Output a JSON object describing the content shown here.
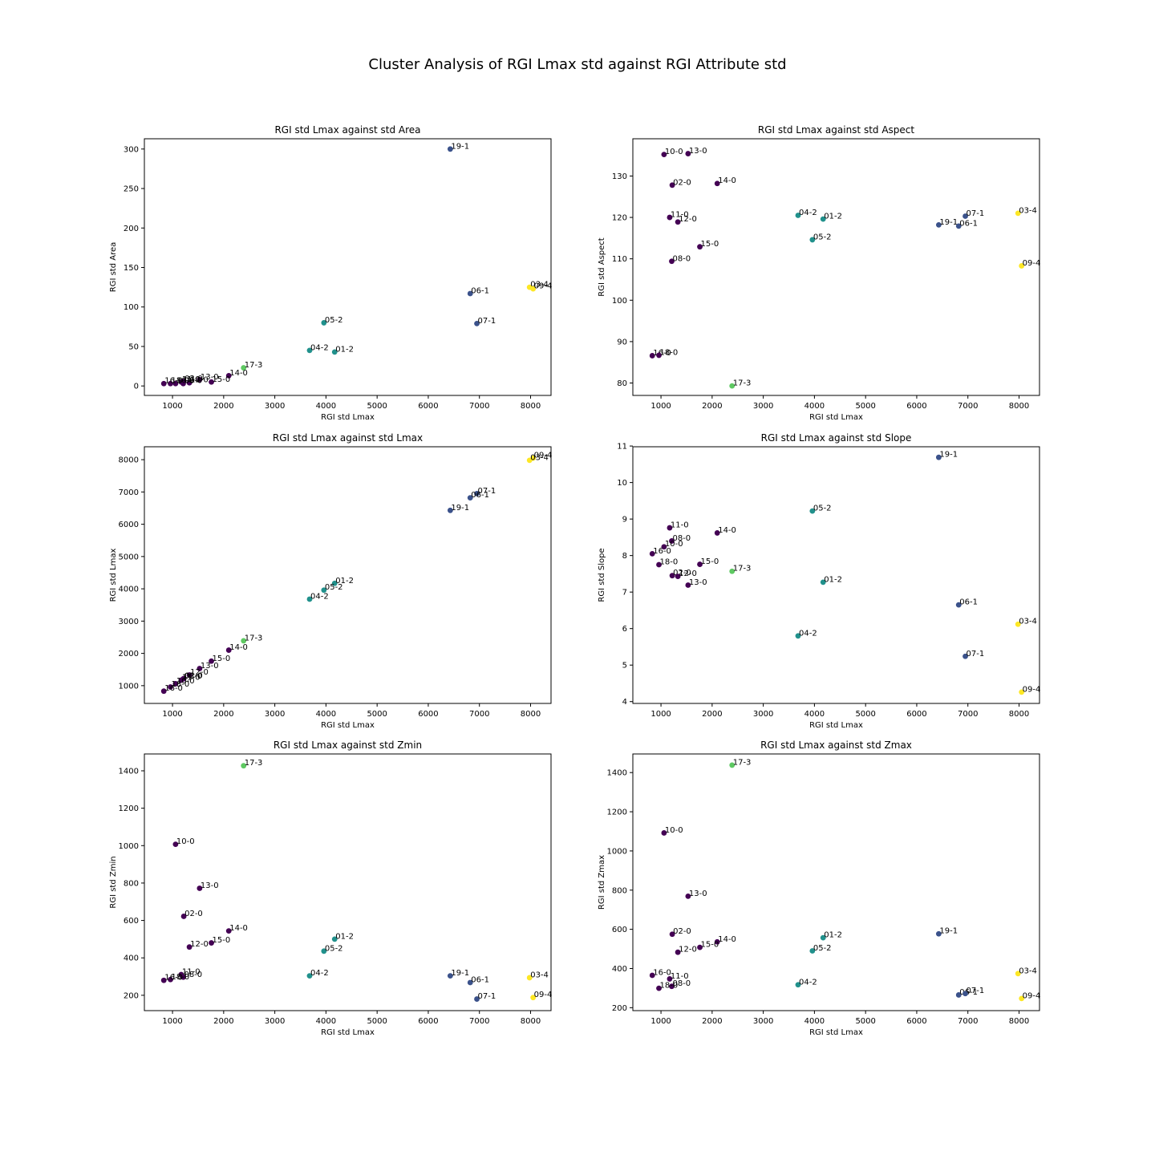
{
  "suptitle": "Cluster Analysis of RGI Lmax std against RGI Attribute std",
  "cluster_colors": {
    "0": "#440154",
    "1": "#3b528b",
    "2": "#21918c",
    "3": "#5ec962",
    "4": "#fde725"
  },
  "chart_data": [
    {
      "type": "scatter",
      "title": "RGI std Lmax against std Area",
      "xlabel": "RGI std Lmax",
      "ylabel": "RGI std Area",
      "xlim": [
        450,
        8400
      ],
      "ylim": [
        -12,
        313
      ],
      "xticks": [
        1000,
        2000,
        3000,
        4000,
        5000,
        6000,
        7000,
        8000
      ],
      "yticks": [
        0,
        50,
        100,
        150,
        200,
        250,
        300
      ],
      "points": [
        {
          "label": "19-1",
          "x": 6430,
          "y": 300,
          "cluster": 1
        },
        {
          "label": "06-1",
          "x": 6820,
          "y": 117,
          "cluster": 1
        },
        {
          "label": "07-1",
          "x": 6950,
          "y": 79,
          "cluster": 1
        },
        {
          "label": "03-4",
          "x": 7980,
          "y": 125,
          "cluster": 4
        },
        {
          "label": "09-4",
          "x": 8050,
          "y": 123,
          "cluster": 4
        },
        {
          "label": "05-2",
          "x": 3960,
          "y": 80,
          "cluster": 2
        },
        {
          "label": "04-2",
          "x": 3680,
          "y": 45,
          "cluster": 2
        },
        {
          "label": "01-2",
          "x": 4170,
          "y": 43,
          "cluster": 2
        },
        {
          "label": "17-3",
          "x": 2390,
          "y": 23,
          "cluster": 3
        },
        {
          "label": "14-0",
          "x": 2100,
          "y": 13,
          "cluster": 0
        },
        {
          "label": "15-0",
          "x": 1760,
          "y": 5,
          "cluster": 0
        },
        {
          "label": "13-0",
          "x": 1530,
          "y": 8,
          "cluster": 0
        },
        {
          "label": "12-0",
          "x": 1330,
          "y": 4,
          "cluster": 0
        },
        {
          "label": "02-0",
          "x": 1220,
          "y": 6,
          "cluster": 0
        },
        {
          "label": "11-0",
          "x": 1170,
          "y": 5,
          "cluster": 0
        },
        {
          "label": "08-0",
          "x": 1210,
          "y": 3,
          "cluster": 0
        },
        {
          "label": "10-0",
          "x": 1060,
          "y": 3,
          "cluster": 0
        },
        {
          "label": "18-0",
          "x": 960,
          "y": 3,
          "cluster": 0
        },
        {
          "label": "16-0",
          "x": 830,
          "y": 3,
          "cluster": 0
        }
      ]
    },
    {
      "type": "scatter",
      "title": "RGI std Lmax against std Aspect",
      "xlabel": "RGI std Lmax",
      "ylabel": "RGI std Aspect",
      "xlim": [
        450,
        8400
      ],
      "ylim": [
        77,
        139
      ],
      "xticks": [
        1000,
        2000,
        3000,
        4000,
        5000,
        6000,
        7000,
        8000
      ],
      "yticks": [
        80,
        90,
        100,
        110,
        120,
        130
      ],
      "points": [
        {
          "label": "10-0",
          "x": 1060,
          "y": 135.2,
          "cluster": 0
        },
        {
          "label": "13-0",
          "x": 1530,
          "y": 135.4,
          "cluster": 0
        },
        {
          "label": "02-0",
          "x": 1220,
          "y": 127.8,
          "cluster": 0
        },
        {
          "label": "14-0",
          "x": 2100,
          "y": 128.2,
          "cluster": 0
        },
        {
          "label": "11-0",
          "x": 1170,
          "y": 120.0,
          "cluster": 0
        },
        {
          "label": "12-0",
          "x": 1330,
          "y": 118.9,
          "cluster": 0
        },
        {
          "label": "15-0",
          "x": 1760,
          "y": 112.9,
          "cluster": 0
        },
        {
          "label": "08-0",
          "x": 1210,
          "y": 109.4,
          "cluster": 0
        },
        {
          "label": "16-0",
          "x": 830,
          "y": 86.6,
          "cluster": 0
        },
        {
          "label": "18-0",
          "x": 960,
          "y": 86.7,
          "cluster": 0
        },
        {
          "label": "17-3",
          "x": 2390,
          "y": 79.3,
          "cluster": 3
        },
        {
          "label": "04-2",
          "x": 3680,
          "y": 120.5,
          "cluster": 2
        },
        {
          "label": "01-2",
          "x": 4170,
          "y": 119.6,
          "cluster": 2
        },
        {
          "label": "05-2",
          "x": 3960,
          "y": 114.6,
          "cluster": 2
        },
        {
          "label": "19-1",
          "x": 6430,
          "y": 118.2,
          "cluster": 1
        },
        {
          "label": "06-1",
          "x": 6820,
          "y": 117.9,
          "cluster": 1
        },
        {
          "label": "07-1",
          "x": 6950,
          "y": 120.3,
          "cluster": 1
        },
        {
          "label": "03-4",
          "x": 7980,
          "y": 121.0,
          "cluster": 4
        },
        {
          "label": "09-4",
          "x": 8050,
          "y": 108.3,
          "cluster": 4
        }
      ]
    },
    {
      "type": "scatter",
      "title": "RGI std Lmax against std Lmax",
      "xlabel": "RGI std Lmax",
      "ylabel": "RGI std Lmax",
      "xlim": [
        450,
        8400
      ],
      "ylim": [
        450,
        8400
      ],
      "xticks": [
        1000,
        2000,
        3000,
        4000,
        5000,
        6000,
        7000,
        8000
      ],
      "yticks": [
        1000,
        2000,
        3000,
        4000,
        5000,
        6000,
        7000,
        8000
      ],
      "points": [
        {
          "label": "09-4",
          "x": 8050,
          "y": 8050,
          "cluster": 4
        },
        {
          "label": "03-4",
          "x": 7980,
          "y": 7980,
          "cluster": 4
        },
        {
          "label": "07-1",
          "x": 6950,
          "y": 6950,
          "cluster": 1
        },
        {
          "label": "06-1",
          "x": 6820,
          "y": 6820,
          "cluster": 1
        },
        {
          "label": "19-1",
          "x": 6430,
          "y": 6430,
          "cluster": 1
        },
        {
          "label": "01-2",
          "x": 4170,
          "y": 4170,
          "cluster": 2
        },
        {
          "label": "05-2",
          "x": 3960,
          "y": 3960,
          "cluster": 2
        },
        {
          "label": "04-2",
          "x": 3680,
          "y": 3680,
          "cluster": 2
        },
        {
          "label": "17-3",
          "x": 2390,
          "y": 2390,
          "cluster": 3
        },
        {
          "label": "14-0",
          "x": 2100,
          "y": 2100,
          "cluster": 0
        },
        {
          "label": "15-0",
          "x": 1760,
          "y": 1760,
          "cluster": 0
        },
        {
          "label": "13-0",
          "x": 1530,
          "y": 1530,
          "cluster": 0
        },
        {
          "label": "12-0",
          "x": 1330,
          "y": 1330,
          "cluster": 0
        },
        {
          "label": "02-0",
          "x": 1220,
          "y": 1220,
          "cluster": 0
        },
        {
          "label": "08-0",
          "x": 1210,
          "y": 1210,
          "cluster": 0
        },
        {
          "label": "11-0",
          "x": 1170,
          "y": 1170,
          "cluster": 0
        },
        {
          "label": "10-0",
          "x": 1060,
          "y": 1060,
          "cluster": 0
        },
        {
          "label": "18-0",
          "x": 960,
          "y": 960,
          "cluster": 0
        },
        {
          "label": "16-0",
          "x": 830,
          "y": 830,
          "cluster": 0
        }
      ]
    },
    {
      "type": "scatter",
      "title": "RGI std Lmax against std Slope",
      "xlabel": "RGI std Lmax",
      "ylabel": "RGI std Slope",
      "xlim": [
        450,
        8400
      ],
      "ylim": [
        3.95,
        10.98
      ],
      "xticks": [
        1000,
        2000,
        3000,
        4000,
        5000,
        6000,
        7000,
        8000
      ],
      "yticks": [
        4,
        5,
        6,
        7,
        8,
        9,
        10,
        11
      ],
      "points": [
        {
          "label": "19-1",
          "x": 6430,
          "y": 10.69,
          "cluster": 1
        },
        {
          "label": "05-2",
          "x": 3960,
          "y": 9.22,
          "cluster": 2
        },
        {
          "label": "11-0",
          "x": 1170,
          "y": 8.76,
          "cluster": 0
        },
        {
          "label": "14-0",
          "x": 2100,
          "y": 8.62,
          "cluster": 0
        },
        {
          "label": "08-0",
          "x": 1210,
          "y": 8.4,
          "cluster": 0
        },
        {
          "label": "10-0",
          "x": 1060,
          "y": 8.24,
          "cluster": 0
        },
        {
          "label": "16-0",
          "x": 830,
          "y": 8.05,
          "cluster": 0
        },
        {
          "label": "18-0",
          "x": 960,
          "y": 7.75,
          "cluster": 0
        },
        {
          "label": "15-0",
          "x": 1760,
          "y": 7.76,
          "cluster": 0
        },
        {
          "label": "17-3",
          "x": 2390,
          "y": 7.57,
          "cluster": 3
        },
        {
          "label": "02-0",
          "x": 1220,
          "y": 7.45,
          "cluster": 0
        },
        {
          "label": "12-0",
          "x": 1330,
          "y": 7.43,
          "cluster": 0
        },
        {
          "label": "13-0",
          "x": 1530,
          "y": 7.19,
          "cluster": 0
        },
        {
          "label": "01-2",
          "x": 4170,
          "y": 7.27,
          "cluster": 2
        },
        {
          "label": "06-1",
          "x": 6820,
          "y": 6.65,
          "cluster": 1
        },
        {
          "label": "03-4",
          "x": 7980,
          "y": 6.12,
          "cluster": 4
        },
        {
          "label": "04-2",
          "x": 3680,
          "y": 5.8,
          "cluster": 2
        },
        {
          "label": "07-1",
          "x": 6950,
          "y": 5.24,
          "cluster": 1
        },
        {
          "label": "09-4",
          "x": 8050,
          "y": 4.26,
          "cluster": 4
        }
      ]
    },
    {
      "type": "scatter",
      "title": "RGI std Lmax against std Zmin",
      "xlabel": "RGI std Lmax",
      "ylabel": "RGI std Zmin",
      "xlim": [
        450,
        8400
      ],
      "ylim": [
        118,
        1490
      ],
      "xticks": [
        1000,
        2000,
        3000,
        4000,
        5000,
        6000,
        7000,
        8000
      ],
      "yticks": [
        200,
        400,
        600,
        800,
        1000,
        1200,
        1400
      ],
      "points": [
        {
          "label": "17-3",
          "x": 2390,
          "y": 1427,
          "cluster": 3
        },
        {
          "label": "10-0",
          "x": 1060,
          "y": 1007,
          "cluster": 0
        },
        {
          "label": "13-0",
          "x": 1530,
          "y": 772,
          "cluster": 0
        },
        {
          "label": "02-0",
          "x": 1220,
          "y": 622,
          "cluster": 0
        },
        {
          "label": "14-0",
          "x": 2100,
          "y": 544,
          "cluster": 0
        },
        {
          "label": "15-0",
          "x": 1760,
          "y": 480,
          "cluster": 0
        },
        {
          "label": "12-0",
          "x": 1330,
          "y": 458,
          "cluster": 0
        },
        {
          "label": "01-2",
          "x": 4170,
          "y": 500,
          "cluster": 2
        },
        {
          "label": "05-2",
          "x": 3960,
          "y": 436,
          "cluster": 2
        },
        {
          "label": "11-0",
          "x": 1170,
          "y": 311,
          "cluster": 0
        },
        {
          "label": "08-0",
          "x": 1210,
          "y": 297,
          "cluster": 0
        },
        {
          "label": "18-0",
          "x": 960,
          "y": 284,
          "cluster": 0
        },
        {
          "label": "16-0",
          "x": 830,
          "y": 280,
          "cluster": 0
        },
        {
          "label": "04-2",
          "x": 3680,
          "y": 304,
          "cluster": 2
        },
        {
          "label": "19-1",
          "x": 6430,
          "y": 304,
          "cluster": 1
        },
        {
          "label": "06-1",
          "x": 6820,
          "y": 268,
          "cluster": 1
        },
        {
          "label": "07-1",
          "x": 6950,
          "y": 180,
          "cluster": 1
        },
        {
          "label": "03-4",
          "x": 7980,
          "y": 294,
          "cluster": 4
        },
        {
          "label": "09-4",
          "x": 8050,
          "y": 188,
          "cluster": 4
        }
      ]
    },
    {
      "type": "scatter",
      "title": "RGI std Lmax against std Zmax",
      "xlabel": "RGI std Lmax",
      "ylabel": "RGI std Zmax",
      "xlim": [
        450,
        8400
      ],
      "ylim": [
        185,
        1495
      ],
      "xticks": [
        1000,
        2000,
        3000,
        4000,
        5000,
        6000,
        7000,
        8000
      ],
      "yticks": [
        200,
        400,
        600,
        800,
        1000,
        1200,
        1400
      ],
      "points": [
        {
          "label": "17-3",
          "x": 2390,
          "y": 1438,
          "cluster": 3
        },
        {
          "label": "10-0",
          "x": 1060,
          "y": 1092,
          "cluster": 0
        },
        {
          "label": "13-0",
          "x": 1530,
          "y": 769,
          "cluster": 0
        },
        {
          "label": "02-0",
          "x": 1220,
          "y": 575,
          "cluster": 0
        },
        {
          "label": "14-0",
          "x": 2100,
          "y": 536,
          "cluster": 0
        },
        {
          "label": "15-0",
          "x": 1760,
          "y": 508,
          "cluster": 0
        },
        {
          "label": "12-0",
          "x": 1330,
          "y": 483,
          "cluster": 0
        },
        {
          "label": "01-2",
          "x": 4170,
          "y": 557,
          "cluster": 2
        },
        {
          "label": "05-2",
          "x": 3960,
          "y": 490,
          "cluster": 2
        },
        {
          "label": "19-1",
          "x": 6430,
          "y": 577,
          "cluster": 1
        },
        {
          "label": "16-0",
          "x": 830,
          "y": 365,
          "cluster": 0
        },
        {
          "label": "11-0",
          "x": 1170,
          "y": 347,
          "cluster": 0
        },
        {
          "label": "08-0",
          "x": 1210,
          "y": 309,
          "cluster": 0
        },
        {
          "label": "18-0",
          "x": 960,
          "y": 299,
          "cluster": 0
        },
        {
          "label": "04-2",
          "x": 3680,
          "y": 317,
          "cluster": 2
        },
        {
          "label": "06-1",
          "x": 6820,
          "y": 265,
          "cluster": 1
        },
        {
          "label": "07-1",
          "x": 6950,
          "y": 272,
          "cluster": 1
        },
        {
          "label": "03-4",
          "x": 7980,
          "y": 374,
          "cluster": 4
        },
        {
          "label": "09-4",
          "x": 8050,
          "y": 247,
          "cluster": 4
        }
      ]
    }
  ]
}
